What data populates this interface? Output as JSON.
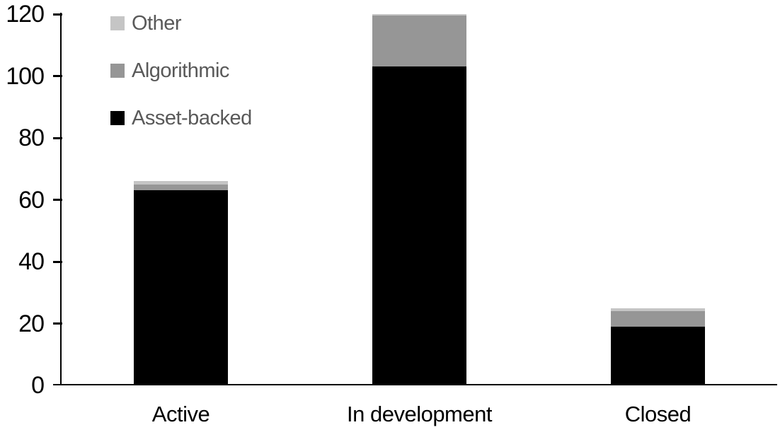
{
  "chart_data": {
    "type": "bar",
    "stacked": true,
    "title": "",
    "xlabel": "",
    "ylabel": "",
    "categories": [
      "Active",
      "In development",
      "Closed"
    ],
    "series": [
      {
        "name": "Asset-backed",
        "color": "#000000",
        "values": [
          63,
          103,
          19
        ]
      },
      {
        "name": "Algorithmic",
        "color": "#969696",
        "values": [
          2,
          16.5,
          5
        ]
      },
      {
        "name": "Other",
        "color": "#c5c5c5",
        "values": [
          1,
          0.5,
          1
        ]
      }
    ],
    "stack_totals": [
      66,
      120,
      25
    ],
    "ylim": [
      0,
      120
    ],
    "yticks": [
      0,
      20,
      40,
      60,
      80,
      100,
      120
    ],
    "grid": false,
    "legend": {
      "position": "top-left",
      "order_top_to_bottom": [
        "Other",
        "Algorithmic",
        "Asset-backed"
      ]
    },
    "colors": {
      "axis": "#000000",
      "tick_label": "#000000",
      "category_label": "#000000",
      "legend_text": "#595959",
      "background": "#ffffff"
    }
  }
}
